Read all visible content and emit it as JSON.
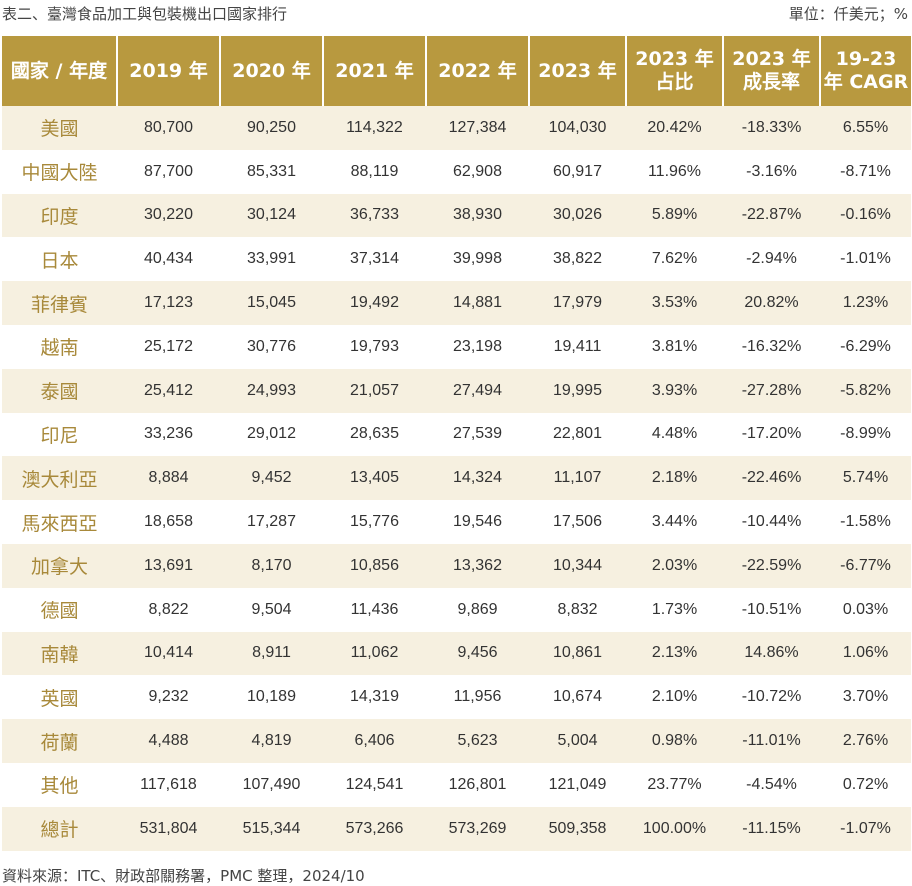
{
  "caption": {
    "title": "表二、臺灣食品加工與包裝機出口國家排行",
    "unit": "單位：仟美元；%"
  },
  "table": {
    "headers": [
      {
        "line1": "國家 / 年度",
        "line2": ""
      },
      {
        "line1": "2019 年",
        "line2": ""
      },
      {
        "line1": "2020 年",
        "line2": ""
      },
      {
        "line1": "2021 年",
        "line2": ""
      },
      {
        "line1": "2022 年",
        "line2": ""
      },
      {
        "line1": "2023 年",
        "line2": ""
      },
      {
        "line1": "2023 年",
        "line2": "占比"
      },
      {
        "line1": "2023 年",
        "line2": "成長率"
      },
      {
        "line1": "19-23",
        "line2": "年 CAGR"
      }
    ],
    "rows": [
      [
        "美國",
        "80,700",
        "90,250",
        "114,322",
        "127,384",
        "104,030",
        "20.42%",
        "-18.33%",
        "6.55%"
      ],
      [
        "中國大陸",
        "87,700",
        "85,331",
        "88,119",
        "62,908",
        "60,917",
        "11.96%",
        "-3.16%",
        "-8.71%"
      ],
      [
        "印度",
        "30,220",
        "30,124",
        "36,733",
        "38,930",
        "30,026",
        "5.89%",
        "-22.87%",
        "-0.16%"
      ],
      [
        "日本",
        "40,434",
        "33,991",
        "37,314",
        "39,998",
        "38,822",
        "7.62%",
        "-2.94%",
        "-1.01%"
      ],
      [
        "菲律賓",
        "17,123",
        "15,045",
        "19,492",
        "14,881",
        "17,979",
        "3.53%",
        "20.82%",
        "1.23%"
      ],
      [
        "越南",
        "25,172",
        "30,776",
        "19,793",
        "23,198",
        "19,411",
        "3.81%",
        "-16.32%",
        "-6.29%"
      ],
      [
        "泰國",
        "25,412",
        "24,993",
        "21,057",
        "27,494",
        "19,995",
        "3.93%",
        "-27.28%",
        "-5.82%"
      ],
      [
        "印尼",
        "33,236",
        "29,012",
        "28,635",
        "27,539",
        "22,801",
        "4.48%",
        "-17.20%",
        "-8.99%"
      ],
      [
        "澳大利亞",
        "8,884",
        "9,452",
        "13,405",
        "14,324",
        "11,107",
        "2.18%",
        "-22.46%",
        "5.74%"
      ],
      [
        "馬來西亞",
        "18,658",
        "17,287",
        "15,776",
        "19,546",
        "17,506",
        "3.44%",
        "-10.44%",
        "-1.58%"
      ],
      [
        "加拿大",
        "13,691",
        "8,170",
        "10,856",
        "13,362",
        "10,344",
        "2.03%",
        "-22.59%",
        "-6.77%"
      ],
      [
        "德國",
        "8,822",
        "9,504",
        "11,436",
        "9,869",
        "8,832",
        "1.73%",
        "-10.51%",
        "0.03%"
      ],
      [
        "南韓",
        "10,414",
        "8,911",
        "11,062",
        "9,456",
        "10,861",
        "2.13%",
        "14.86%",
        "1.06%"
      ],
      [
        "英國",
        "9,232",
        "10,189",
        "14,319",
        "11,956",
        "10,674",
        "2.10%",
        "-10.72%",
        "3.70%"
      ],
      [
        "荷蘭",
        "4,488",
        "4,819",
        "6,406",
        "5,623",
        "5,004",
        "0.98%",
        "-11.01%",
        "2.76%"
      ],
      [
        "其他",
        "117,618",
        "107,490",
        "124,541",
        "126,801",
        "121,049",
        "23.77%",
        "-4.54%",
        "0.72%"
      ],
      [
        "總計",
        "531,804",
        "515,344",
        "573,266",
        "573,269",
        "509,358",
        "100.00%",
        "-11.15%",
        "-1.07%"
      ]
    ]
  },
  "source": "資料來源：ITC、財政部關務署，PMC 整理，2024/10",
  "colors": {
    "header_bg": "#b8993f",
    "header_text": "#ffffff",
    "country_text": "#a8893a",
    "stripe_bg": "#f6f0e0"
  }
}
